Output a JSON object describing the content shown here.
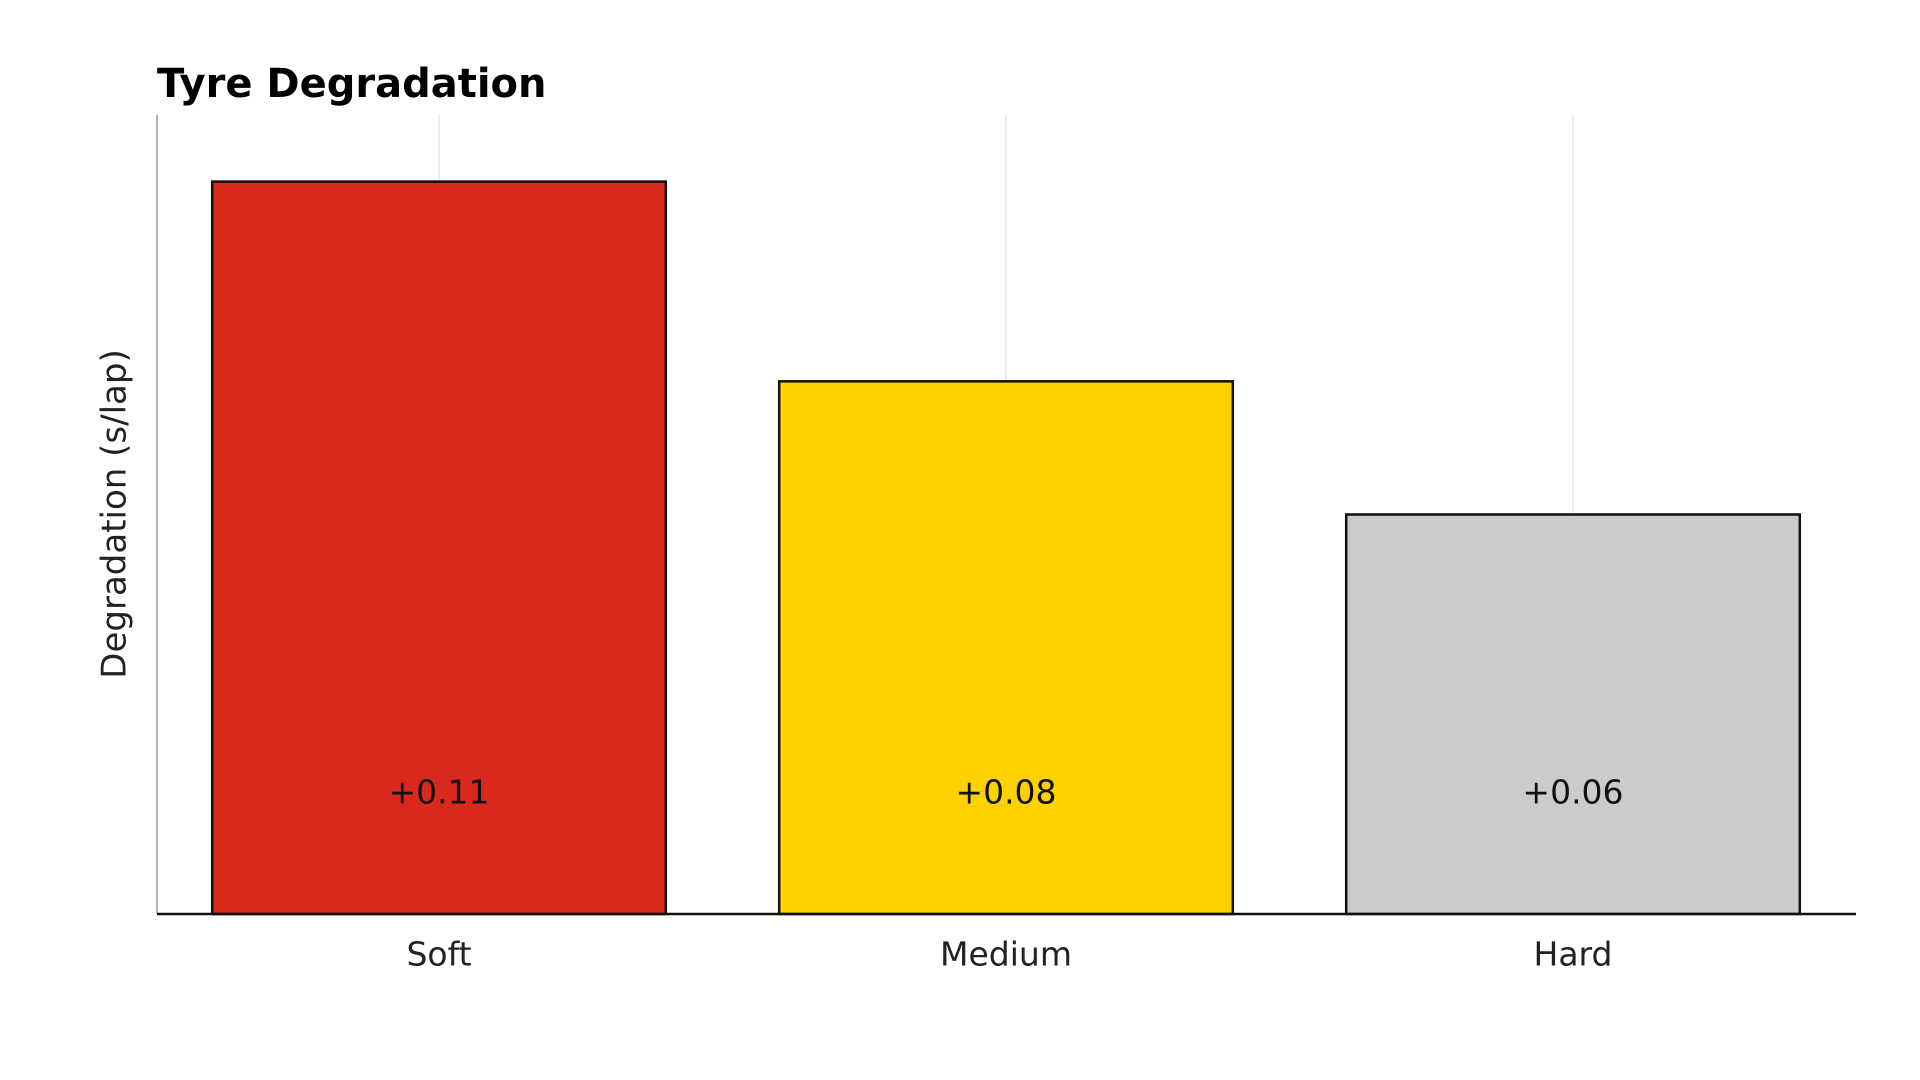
{
  "chart_data": {
    "type": "bar",
    "title": "Tyre Degradation",
    "y_label": "Degradation (s/lap)",
    "categories": [
      "Soft",
      "Medium",
      "Hard"
    ],
    "values": [
      0.11,
      0.08,
      0.06
    ],
    "value_labels": [
      "+0.11",
      "+0.08",
      "+0.06"
    ],
    "colors": [
      "#da291c",
      "#ffd100",
      "#cbcbcb"
    ],
    "ylim": [
      0,
      0.12
    ],
    "grid": true
  }
}
